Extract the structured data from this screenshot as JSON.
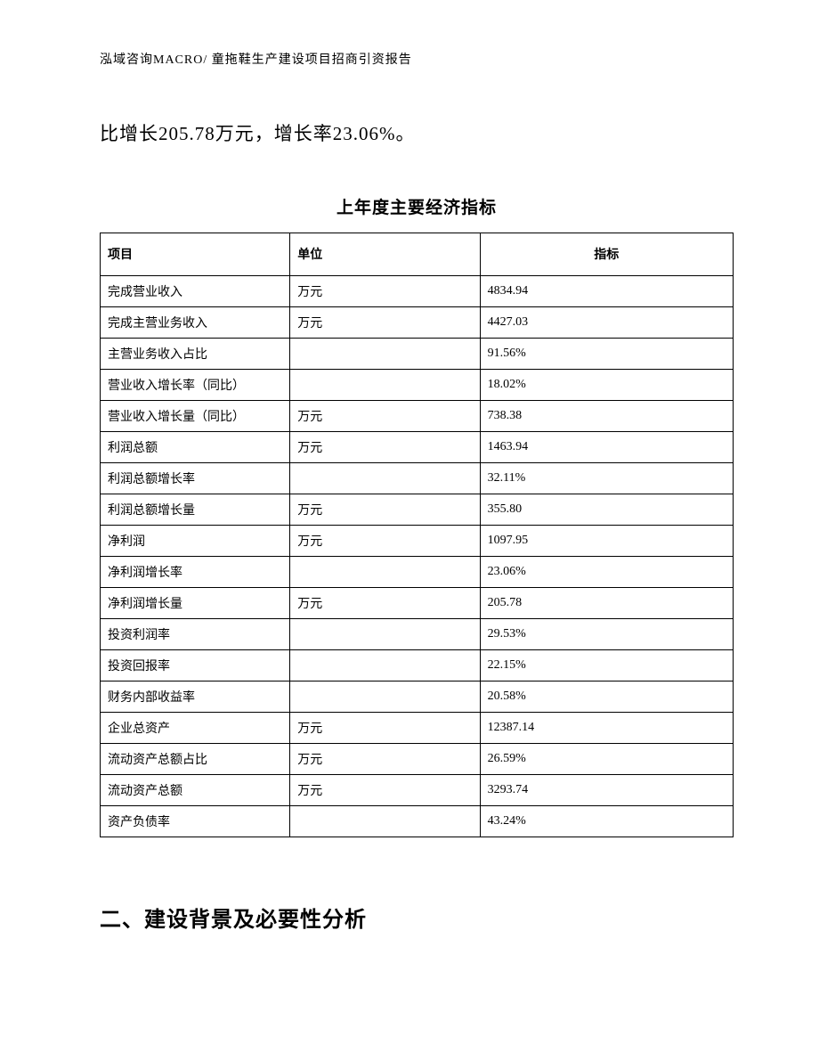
{
  "header": "泓域咨询MACRO/ 童拖鞋生产建设项目招商引资报告",
  "paragraph": "比增长205.78万元，增长率23.06%。",
  "table": {
    "type": "table",
    "title": "上年度主要经济指标",
    "columns": [
      "项目",
      "单位",
      "指标"
    ],
    "column_widths": [
      0.3,
      0.3,
      0.4
    ],
    "column_align": [
      "left",
      "left",
      "center"
    ],
    "border_color": "#000000",
    "background_color": "#ffffff",
    "header_fontsize": 14,
    "cell_fontsize": 14,
    "header_font_weight": "bold",
    "rows": [
      {
        "project": "完成营业收入",
        "unit": "万元",
        "value": "4834.94"
      },
      {
        "project": "完成主营业务收入",
        "unit": "万元",
        "value": "4427.03"
      },
      {
        "project": "主营业务收入占比",
        "unit": "",
        "value": "91.56%"
      },
      {
        "project": "营业收入增长率（同比）",
        "unit": "",
        "value": "18.02%"
      },
      {
        "project": "营业收入增长量（同比）",
        "unit": "万元",
        "value": "738.38"
      },
      {
        "project": "利润总额",
        "unit": "万元",
        "value": "1463.94"
      },
      {
        "project": "利润总额增长率",
        "unit": "",
        "value": "32.11%"
      },
      {
        "project": "利润总额增长量",
        "unit": "万元",
        "value": "355.80"
      },
      {
        "project": "净利润",
        "unit": "万元",
        "value": "1097.95"
      },
      {
        "project": "净利润增长率",
        "unit": "",
        "value": "23.06%"
      },
      {
        "project": "净利润增长量",
        "unit": "万元",
        "value": "205.78"
      },
      {
        "project": "投资利润率",
        "unit": "",
        "value": "29.53%"
      },
      {
        "project": "投资回报率",
        "unit": "",
        "value": "22.15%"
      },
      {
        "project": "财务内部收益率",
        "unit": "",
        "value": "20.58%"
      },
      {
        "project": "企业总资产",
        "unit": "万元",
        "value": "12387.14"
      },
      {
        "project": "流动资产总额占比",
        "unit": "万元",
        "value": "26.59%"
      },
      {
        "project": "流动资产总额",
        "unit": "万元",
        "value": "3293.74"
      },
      {
        "project": "资产负债率",
        "unit": "",
        "value": "43.24%"
      }
    ]
  },
  "section_heading": "二、建设背景及必要性分析"
}
